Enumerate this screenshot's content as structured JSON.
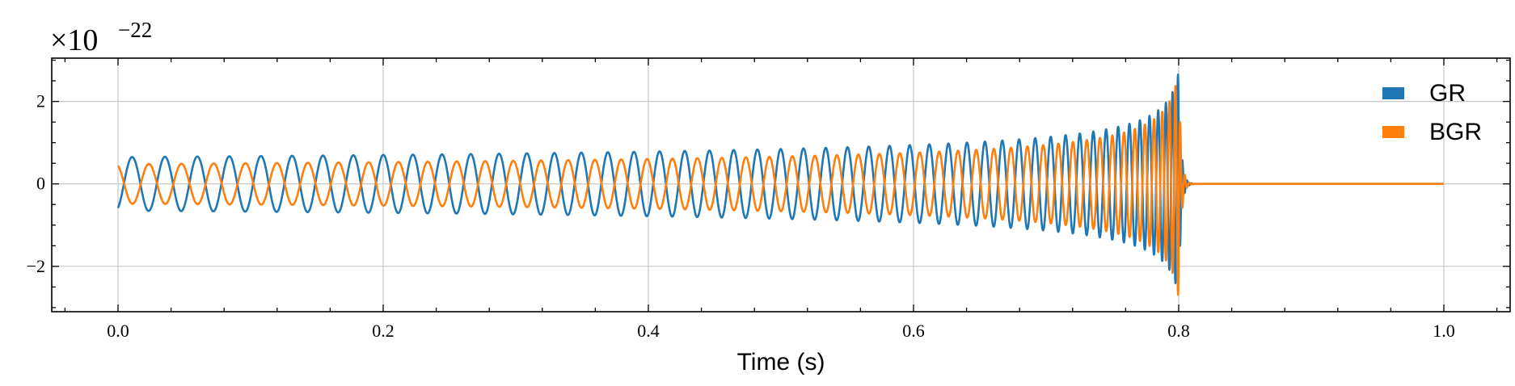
{
  "chart_data": {
    "type": "line",
    "title": "",
    "xlabel": "Time (s)",
    "ylabel": "",
    "y_multiplier": {
      "base": "×10",
      "exponent": "−22"
    },
    "xlim": [
      -0.05,
      1.05
    ],
    "ylim": [
      -3.1,
      3.05
    ],
    "xticks": [
      0.0,
      0.2,
      0.4,
      0.6,
      0.8,
      1.0
    ],
    "xtick_labels": [
      "0.0",
      "0.2",
      "0.4",
      "0.6",
      "0.8",
      "1.0"
    ],
    "yticks": [
      -2,
      0,
      2
    ],
    "ytick_labels": [
      "−2",
      "0",
      "2"
    ],
    "grid": true,
    "legend_position": "top-right",
    "waveform_model": {
      "merger_time": 0.8,
      "end_time": 1.0,
      "start_frequency_hz": 40,
      "chirp_exponent": 0.375
    },
    "series": [
      {
        "name": "GR",
        "color": "#1f77b4",
        "start_amplitude": 0.65,
        "peak_amplitude": 2.75,
        "phase_offset": 3.6
      },
      {
        "name": "BGR",
        "color": "#ff7f0e",
        "start_amplitude": 0.48,
        "peak_amplitude": 2.8,
        "phase_offset": 0.4
      }
    ]
  }
}
